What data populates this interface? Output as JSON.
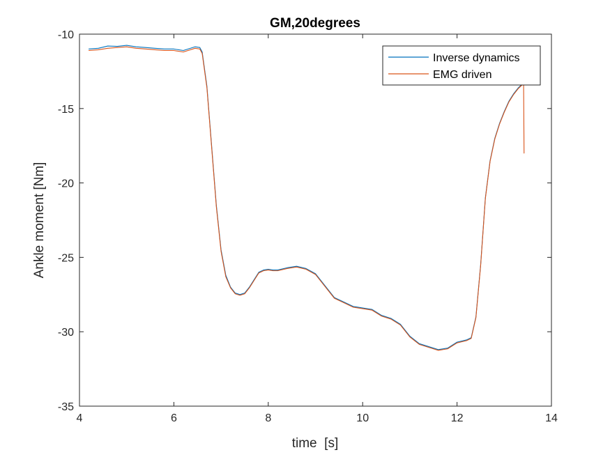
{
  "chart_data": {
    "type": "line",
    "title": "GM,20degrees",
    "xlabel": "time  [s]",
    "ylabel": "Ankle moment [Nm]",
    "xlim": [
      4,
      14
    ],
    "ylim": [
      -35,
      -10
    ],
    "xticks": [
      4,
      6,
      8,
      10,
      12,
      14
    ],
    "yticks": [
      -35,
      -30,
      -25,
      -20,
      -15,
      -10
    ],
    "grid": false,
    "legend_position": "top-right",
    "series": [
      {
        "name": "Inverse dynamics",
        "color": "#0072BD",
        "x": [
          4.2,
          4.4,
          4.6,
          4.8,
          5.0,
          5.2,
          5.4,
          5.6,
          5.8,
          6.0,
          6.2,
          6.3,
          6.45,
          6.55,
          6.6,
          6.7,
          6.8,
          6.9,
          7.0,
          7.1,
          7.2,
          7.3,
          7.4,
          7.5,
          7.6,
          7.7,
          7.8,
          7.9,
          8.0,
          8.1,
          8.2,
          8.4,
          8.6,
          8.8,
          9.0,
          9.2,
          9.4,
          9.6,
          9.8,
          10.0,
          10.2,
          10.4,
          10.6,
          10.8,
          11.0,
          11.2,
          11.4,
          11.6,
          11.8,
          12.0,
          12.2,
          12.3,
          12.4,
          12.5,
          12.6,
          12.7,
          12.8,
          12.9,
          13.0,
          13.1,
          13.2,
          13.3,
          13.4
        ],
        "y": [
          -11.0,
          -10.95,
          -10.8,
          -10.82,
          -10.75,
          -10.85,
          -10.9,
          -10.95,
          -11.0,
          -11.0,
          -11.1,
          -11.0,
          -10.85,
          -10.9,
          -11.2,
          -13.5,
          -17.5,
          -21.5,
          -24.5,
          -26.2,
          -27.0,
          -27.4,
          -27.5,
          -27.4,
          -27.0,
          -26.5,
          -26.0,
          -25.85,
          -25.8,
          -25.85,
          -25.85,
          -25.7,
          -25.6,
          -25.75,
          -26.1,
          -26.9,
          -27.7,
          -28.0,
          -28.3,
          -28.4,
          -28.5,
          -28.9,
          -29.1,
          -29.5,
          -30.3,
          -30.8,
          -31.0,
          -31.2,
          -31.1,
          -30.7,
          -30.55,
          -30.4,
          -29.0,
          -25.5,
          -21.0,
          -18.5,
          -17.0,
          -16.0,
          -15.2,
          -14.5,
          -14.0,
          -13.6,
          -13.3
        ]
      },
      {
        "name": "EMG driven",
        "color": "#D95319",
        "x": [
          4.2,
          4.4,
          4.6,
          4.8,
          5.0,
          5.2,
          5.4,
          5.6,
          5.8,
          6.0,
          6.2,
          6.3,
          6.45,
          6.55,
          6.6,
          6.7,
          6.8,
          6.9,
          7.0,
          7.1,
          7.2,
          7.3,
          7.4,
          7.5,
          7.6,
          7.7,
          7.8,
          7.9,
          8.0,
          8.1,
          8.2,
          8.4,
          8.6,
          8.8,
          9.0,
          9.2,
          9.4,
          9.6,
          9.8,
          10.0,
          10.2,
          10.4,
          10.6,
          10.8,
          11.0,
          11.2,
          11.4,
          11.6,
          11.8,
          12.0,
          12.2,
          12.3,
          12.4,
          12.5,
          12.6,
          12.7,
          12.8,
          12.9,
          13.0,
          13.1,
          13.2,
          13.3,
          13.4,
          13.41,
          13.42
        ],
        "y": [
          -11.1,
          -11.05,
          -10.95,
          -10.9,
          -10.85,
          -10.95,
          -11.0,
          -11.05,
          -11.1,
          -11.1,
          -11.2,
          -11.1,
          -10.95,
          -11.0,
          -11.3,
          -13.6,
          -17.6,
          -21.6,
          -24.6,
          -26.3,
          -27.05,
          -27.45,
          -27.55,
          -27.45,
          -27.05,
          -26.55,
          -26.05,
          -25.9,
          -25.85,
          -25.9,
          -25.9,
          -25.75,
          -25.65,
          -25.8,
          -26.15,
          -26.95,
          -27.75,
          -28.05,
          -28.35,
          -28.45,
          -28.55,
          -28.95,
          -29.15,
          -29.55,
          -30.35,
          -30.85,
          -31.05,
          -31.25,
          -31.15,
          -30.75,
          -30.6,
          -30.45,
          -29.05,
          -25.55,
          -21.05,
          -18.55,
          -17.05,
          -16.05,
          -15.25,
          -14.55,
          -14.05,
          -13.65,
          -13.35,
          -13.3,
          -18.0
        ]
      }
    ]
  }
}
